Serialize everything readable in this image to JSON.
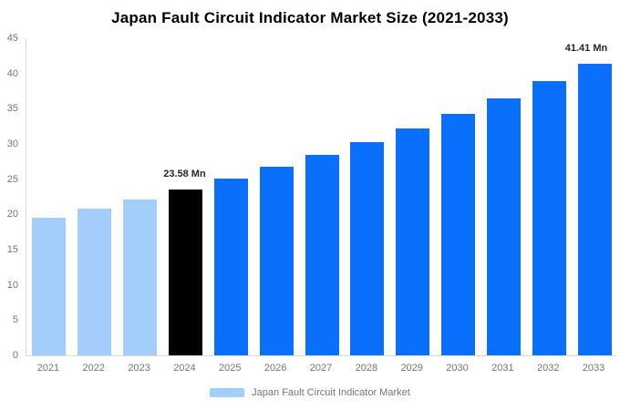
{
  "title": "Japan Fault Circuit Indicator Market Size (2021-2033)",
  "legend": {
    "label": "Japan Fault Circuit Indicator Market",
    "swatch_color": "#a3cefc"
  },
  "colors": {
    "historical": "#a3cefc",
    "base": "#000000",
    "forecast": "#0a6ffb",
    "axis_line": "#d9d9d9",
    "tick_text": "#757575",
    "data_label_text": "#262626"
  },
  "chart_data": {
    "type": "bar",
    "title": "Japan Fault Circuit Indicator Market Size (2021-2033)",
    "categories": [
      "2021",
      "2022",
      "2023",
      "2024",
      "2025",
      "2026",
      "2027",
      "2028",
      "2029",
      "2030",
      "2031",
      "2032",
      "2033"
    ],
    "values": [
      19.55,
      20.81,
      22.15,
      23.58,
      25.1,
      26.72,
      28.44,
      30.28,
      32.23,
      34.31,
      36.52,
      38.87,
      41.41
    ],
    "bar_roles": [
      "historical",
      "historical",
      "historical",
      "base",
      "forecast",
      "forecast",
      "forecast",
      "forecast",
      "forecast",
      "forecast",
      "forecast",
      "forecast",
      "forecast"
    ],
    "annotations": [
      {
        "index": 3,
        "text": "23.58 Mn"
      },
      {
        "index": 12,
        "text": "41.41 Mn"
      }
    ],
    "unit": "Mn",
    "xlabel": "",
    "ylabel": "",
    "ylim": [
      0,
      45
    ],
    "yticks": [
      0,
      5,
      10,
      15,
      20,
      25,
      30,
      35,
      40,
      45
    ],
    "grid": false,
    "legend_position": "bottom",
    "legend_entries": [
      "Japan Fault Circuit Indicator Market"
    ]
  }
}
